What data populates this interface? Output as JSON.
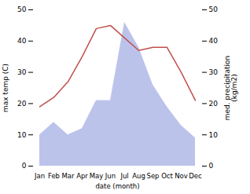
{
  "chart_data": {
    "type": "line",
    "categories": [
      "Jan",
      "Feb",
      "Mar",
      "Apr",
      "May",
      "Jun",
      "Jul",
      "Aug",
      "Sep",
      "Oct",
      "Nov",
      "Dec"
    ],
    "xlabel": "date (month)",
    "ylabel": "max temp (C)",
    "y2label": "med. precipitation\n(kg/m2)",
    "ylim": [
      0,
      50
    ],
    "yticks": [
      0,
      10,
      20,
      30,
      40,
      50
    ],
    "y2lim": [
      0,
      50
    ],
    "y2ticks": [
      0,
      10,
      20,
      30,
      40,
      50
    ],
    "series": [
      {
        "type": "area",
        "color": "#b0b8e8",
        "axis": "y2",
        "values": [
          10,
          14,
          10,
          12,
          21,
          21,
          46,
          38,
          26,
          19,
          13,
          9
        ]
      },
      {
        "type": "line",
        "color": "#c0504d",
        "values": [
          19,
          22,
          27,
          35,
          44,
          45,
          41,
          37,
          38,
          38,
          30,
          21
        ]
      }
    ]
  }
}
